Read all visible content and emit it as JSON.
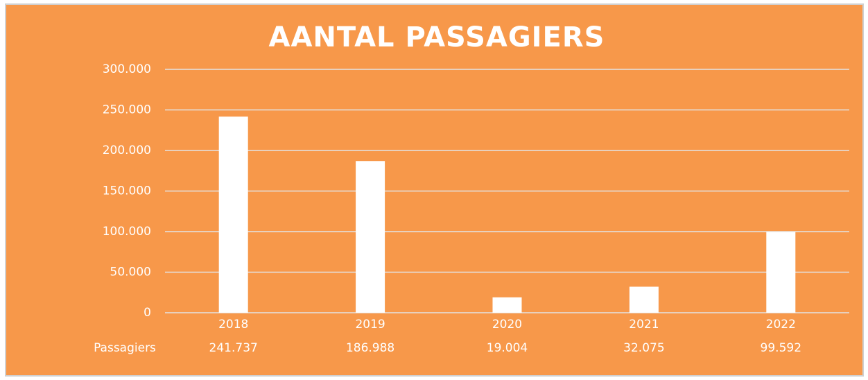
{
  "chart_data": {
    "type": "bar",
    "title": "AANTAL PASSAGIERS",
    "categories": [
      "2018",
      "2019",
      "2020",
      "2021",
      "2022"
    ],
    "series": [
      {
        "name": "Passagiers",
        "color": "#ffffff",
        "values": [
          241737,
          186988,
          19004,
          32075,
          99592
        ],
        "value_labels": [
          "241.737",
          "186.988",
          "19.004",
          "32.075",
          "99.592"
        ]
      }
    ],
    "ylim": [
      0,
      300000
    ],
    "yticks": [
      0,
      {
        "value": 50000,
        "label": "50.000"
      },
      {
        "value": 100000,
        "label": "100.000"
      },
      {
        "value": 150000,
        "label": "150.000"
      },
      {
        "value": 200000,
        "label": "200.000"
      },
      {
        "value": 250000,
        "label": "250.000"
      },
      {
        "value": 300000,
        "label": "300.000"
      }
    ],
    "grid": true,
    "background": "#f7984a"
  }
}
